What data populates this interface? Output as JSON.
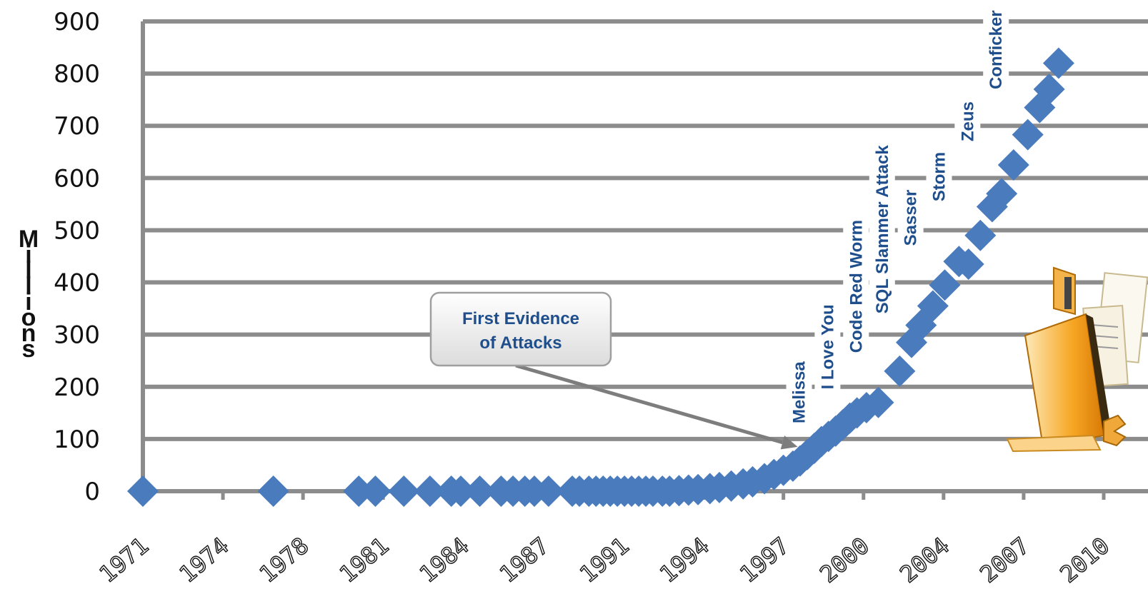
{
  "chart_data": {
    "type": "scatter",
    "ylabel": "Millions",
    "ylim": [
      0,
      900
    ],
    "yticks": [
      0,
      100,
      200,
      300,
      400,
      500,
      600,
      700,
      800,
      900
    ],
    "xlim": [
      1971,
      2011.5
    ],
    "xticks": [
      "1971",
      "1974",
      "1978",
      "1981",
      "1984",
      "1987",
      "1991",
      "1994",
      "1997",
      "2000",
      "2004",
      "2007",
      "2010"
    ],
    "grid": true,
    "marker_color": "#4a7bbd",
    "points": [
      {
        "x": 1971,
        "y": 0
      },
      {
        "x": 1976.5,
        "y": 0
      },
      {
        "x": 1980.1,
        "y": 0
      },
      {
        "x": 1980.8,
        "y": 0
      },
      {
        "x": 1982.0,
        "y": 0
      },
      {
        "x": 1983.1,
        "y": 0
      },
      {
        "x": 1984.0,
        "y": 0
      },
      {
        "x": 1984.4,
        "y": 0
      },
      {
        "x": 1985.2,
        "y": 0
      },
      {
        "x": 1986.1,
        "y": 0
      },
      {
        "x": 1986.6,
        "y": 0
      },
      {
        "x": 1987.1,
        "y": 0
      },
      {
        "x": 1987.5,
        "y": 0
      },
      {
        "x": 1988.1,
        "y": 0
      },
      {
        "x": 1989.1,
        "y": 0
      },
      {
        "x": 1989.4,
        "y": 0
      },
      {
        "x": 1989.8,
        "y": 0
      },
      {
        "x": 1990.1,
        "y": 0
      },
      {
        "x": 1990.4,
        "y": 0
      },
      {
        "x": 1990.7,
        "y": 0
      },
      {
        "x": 1991.0,
        "y": 0
      },
      {
        "x": 1991.3,
        "y": 0
      },
      {
        "x": 1991.6,
        "y": 0
      },
      {
        "x": 1991.9,
        "y": 0
      },
      {
        "x": 1992.2,
        "y": 0
      },
      {
        "x": 1992.5,
        "y": 0
      },
      {
        "x": 1992.9,
        "y": 0
      },
      {
        "x": 1993.2,
        "y": 0
      },
      {
        "x": 1993.6,
        "y": 1
      },
      {
        "x": 1994.0,
        "y": 2
      },
      {
        "x": 1994.4,
        "y": 3
      },
      {
        "x": 1994.9,
        "y": 5
      },
      {
        "x": 1995.3,
        "y": 7
      },
      {
        "x": 1995.8,
        "y": 10
      },
      {
        "x": 1996.3,
        "y": 14
      },
      {
        "x": 1996.7,
        "y": 18
      },
      {
        "x": 1997.2,
        "y": 24
      },
      {
        "x": 1997.6,
        "y": 32
      },
      {
        "x": 1998.0,
        "y": 40
      },
      {
        "x": 1998.4,
        "y": 48
      },
      {
        "x": 1998.7,
        "y": 58
      },
      {
        "x": 1999.0,
        "y": 70
      },
      {
        "x": 1999.3,
        "y": 82
      },
      {
        "x": 1999.6,
        "y": 95
      },
      {
        "x": 1999.9,
        "y": 105
      },
      {
        "x": 2000.2,
        "y": 115
      },
      {
        "x": 2000.5,
        "y": 127
      },
      {
        "x": 2000.8,
        "y": 140
      },
      {
        "x": 2001.1,
        "y": 150
      },
      {
        "x": 2001.5,
        "y": 160
      },
      {
        "x": 2002.0,
        "y": 170
      },
      {
        "x": 2002.9,
        "y": 230
      },
      {
        "x": 2003.4,
        "y": 285
      },
      {
        "x": 2003.8,
        "y": 318
      },
      {
        "x": 2004.3,
        "y": 355
      },
      {
        "x": 2004.8,
        "y": 395
      },
      {
        "x": 2005.4,
        "y": 440
      },
      {
        "x": 2005.8,
        "y": 435
      },
      {
        "x": 2006.3,
        "y": 490
      },
      {
        "x": 2006.8,
        "y": 545
      },
      {
        "x": 2007.2,
        "y": 570
      },
      {
        "x": 2007.7,
        "y": 625
      },
      {
        "x": 2008.3,
        "y": 683
      },
      {
        "x": 2008.8,
        "y": 735
      },
      {
        "x": 2009.2,
        "y": 770
      },
      {
        "x": 2009.6,
        "y": 820
      }
    ],
    "annotations": [
      {
        "text": "Melissa",
        "x": 1998.9,
        "y_bottom": 130
      },
      {
        "text": "I Love You",
        "x": 2000.1,
        "y_bottom": 195
      },
      {
        "text": "Code Red Worm",
        "x": 2001.3,
        "y_bottom": 265
      },
      {
        "text": "SQL Slammer Attack",
        "x": 2002.4,
        "y_bottom": 340
      },
      {
        "text": "Sasser",
        "x": 2003.6,
        "y_bottom": 470
      },
      {
        "text": "Storm",
        "x": 2004.8,
        "y_bottom": 555
      },
      {
        "text": "Zeus",
        "x": 2006.0,
        "y_bottom": 670
      },
      {
        "text": "Conficker",
        "x": 2007.2,
        "y_bottom": 770
      }
    ],
    "callout": {
      "text_line1": "First Evidence",
      "text_line2": "of Attacks",
      "arrow_to_x": 1998.6,
      "arrow_to_y": 85
    }
  }
}
